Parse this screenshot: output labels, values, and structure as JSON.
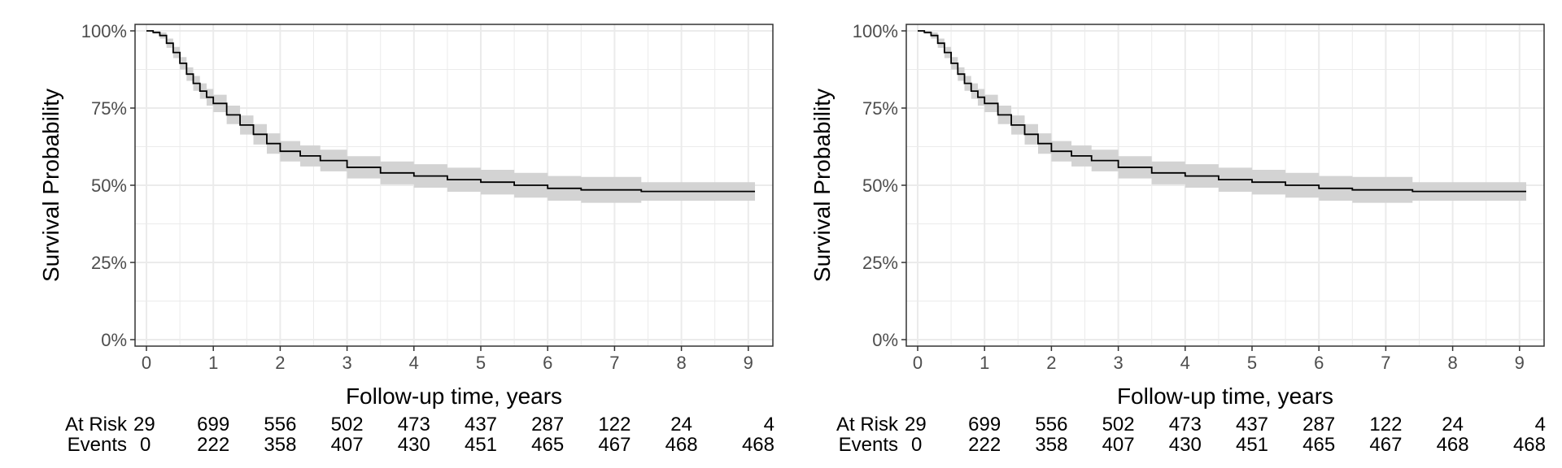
{
  "chart_data": [
    {
      "type": "line",
      "subtype": "kaplan-meier survival curve with confidence band",
      "title": "",
      "xlabel": "Follow-up time, years",
      "ylabel": "Survival Probability",
      "xlim": [
        0,
        9.1
      ],
      "ylim": [
        0,
        1
      ],
      "x_ticks": [
        "0",
        "1",
        "2",
        "3",
        "4",
        "5",
        "6",
        "7",
        "8",
        "9"
      ],
      "y_ticks": [
        "0%",
        "25%",
        "50%",
        "75%",
        "100%"
      ],
      "grid": true,
      "colors": {
        "line": "#000000",
        "band": "#d3d3d3",
        "grid": "#ebebeb",
        "frame": "#333333"
      },
      "series": [
        {
          "x": [
            0,
            0.1,
            0.2,
            0.3,
            0.4,
            0.5,
            0.6,
            0.7,
            0.8,
            0.9,
            1.0,
            1.2,
            1.4,
            1.6,
            1.8,
            2.0,
            2.3,
            2.6,
            3.0,
            3.5,
            4.0,
            4.5,
            5.0,
            5.5,
            6.0,
            6.5,
            7.0,
            7.4,
            8.0,
            9.1
          ],
          "y": [
            1.0,
            0.995,
            0.985,
            0.96,
            0.93,
            0.895,
            0.86,
            0.83,
            0.805,
            0.785,
            0.765,
            0.728,
            0.695,
            0.665,
            0.635,
            0.61,
            0.595,
            0.58,
            0.558,
            0.54,
            0.53,
            0.518,
            0.51,
            0.5,
            0.49,
            0.485,
            0.485,
            0.48,
            0.48,
            0.48
          ],
          "lower": [
            1.0,
            0.99,
            0.975,
            0.945,
            0.912,
            0.875,
            0.838,
            0.806,
            0.78,
            0.758,
            0.737,
            0.698,
            0.664,
            0.632,
            0.602,
            0.577,
            0.561,
            0.545,
            0.522,
            0.503,
            0.492,
            0.479,
            0.47,
            0.46,
            0.45,
            0.443,
            0.443,
            0.45,
            0.45,
            0.45
          ],
          "upper": [
            1.0,
            1.0,
            0.995,
            0.975,
            0.948,
            0.915,
            0.882,
            0.854,
            0.83,
            0.812,
            0.793,
            0.758,
            0.726,
            0.698,
            0.668,
            0.643,
            0.629,
            0.615,
            0.594,
            0.577,
            0.568,
            0.557,
            0.55,
            0.54,
            0.53,
            0.527,
            0.527,
            0.51,
            0.51,
            0.51
          ]
        }
      ],
      "risk_table": {
        "at_risk_label": "At Risk",
        "events_label": "Events",
        "at_risk": [
          "29",
          "699",
          "556",
          "502",
          "473",
          "437",
          "287",
          "122",
          "24",
          "4"
        ],
        "events": [
          "0",
          "222",
          "358",
          "407",
          "430",
          "451",
          "465",
          "467",
          "468",
          "468"
        ]
      }
    },
    {
      "type": "line",
      "subtype": "kaplan-meier survival curve with confidence band",
      "title": "",
      "xlabel": "Follow-up time, years",
      "ylabel": "Survival Probability",
      "xlim": [
        0,
        9.1
      ],
      "ylim": [
        0,
        1
      ],
      "x_ticks": [
        "0",
        "1",
        "2",
        "3",
        "4",
        "5",
        "6",
        "7",
        "8",
        "9"
      ],
      "y_ticks": [
        "0%",
        "25%",
        "50%",
        "75%",
        "100%"
      ],
      "grid": true,
      "colors": {
        "line": "#000000",
        "band": "#d3d3d3",
        "grid": "#ebebeb",
        "frame": "#333333"
      },
      "series": [
        {
          "x": [
            0,
            0.1,
            0.2,
            0.3,
            0.4,
            0.5,
            0.6,
            0.7,
            0.8,
            0.9,
            1.0,
            1.2,
            1.4,
            1.6,
            1.8,
            2.0,
            2.3,
            2.6,
            3.0,
            3.5,
            4.0,
            4.5,
            5.0,
            5.5,
            6.0,
            6.5,
            7.0,
            7.4,
            8.0,
            9.1
          ],
          "y": [
            1.0,
            0.995,
            0.985,
            0.96,
            0.93,
            0.895,
            0.86,
            0.83,
            0.805,
            0.785,
            0.765,
            0.728,
            0.695,
            0.665,
            0.635,
            0.61,
            0.595,
            0.58,
            0.558,
            0.54,
            0.53,
            0.518,
            0.51,
            0.5,
            0.49,
            0.485,
            0.485,
            0.48,
            0.48,
            0.48
          ],
          "lower": [
            1.0,
            0.99,
            0.975,
            0.945,
            0.912,
            0.875,
            0.838,
            0.806,
            0.78,
            0.758,
            0.737,
            0.698,
            0.664,
            0.632,
            0.602,
            0.577,
            0.561,
            0.545,
            0.522,
            0.503,
            0.492,
            0.479,
            0.47,
            0.46,
            0.45,
            0.443,
            0.443,
            0.45,
            0.45,
            0.45
          ],
          "upper": [
            1.0,
            1.0,
            0.995,
            0.975,
            0.948,
            0.915,
            0.882,
            0.854,
            0.83,
            0.812,
            0.793,
            0.758,
            0.726,
            0.698,
            0.668,
            0.643,
            0.629,
            0.615,
            0.594,
            0.577,
            0.568,
            0.557,
            0.55,
            0.54,
            0.53,
            0.527,
            0.527,
            0.51,
            0.51,
            0.51
          ]
        }
      ],
      "risk_table": {
        "at_risk_label": "At Risk",
        "events_label": "Events",
        "at_risk": [
          "29",
          "699",
          "556",
          "502",
          "473",
          "437",
          "287",
          "122",
          "24",
          "4"
        ],
        "events": [
          "0",
          "222",
          "358",
          "407",
          "430",
          "451",
          "465",
          "467",
          "468",
          "468"
        ]
      }
    }
  ]
}
